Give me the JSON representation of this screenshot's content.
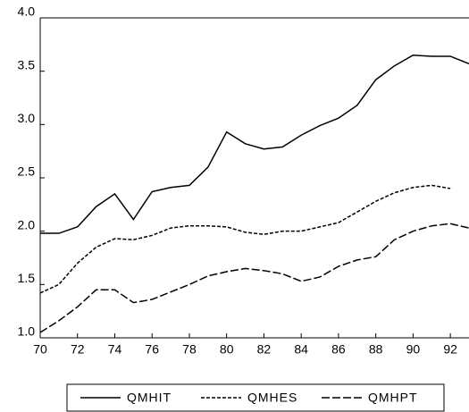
{
  "chart_data": {
    "type": "line",
    "x": [
      1970,
      1971,
      1972,
      1973,
      1974,
      1975,
      1976,
      1977,
      1978,
      1979,
      1980,
      1981,
      1982,
      1983,
      1984,
      1985,
      1986,
      1987,
      1988,
      1989,
      1990,
      1991,
      1992,
      1993
    ],
    "series": [
      {
        "name": "QMHIT",
        "color": "#000000",
        "dash": "solid",
        "values": [
          1.98,
          1.98,
          2.04,
          2.23,
          2.35,
          2.11,
          2.37,
          2.41,
          2.43,
          2.6,
          2.93,
          2.82,
          2.77,
          2.79,
          2.9,
          2.99,
          3.06,
          3.18,
          3.42,
          3.55,
          3.65,
          3.64,
          3.64,
          3.57
        ]
      },
      {
        "name": "QMHES",
        "color": "#000000",
        "dash": "short",
        "values": [
          1.42,
          1.5,
          1.7,
          1.85,
          1.93,
          1.92,
          1.96,
          2.03,
          2.05,
          2.05,
          2.04,
          1.99,
          1.97,
          2.0,
          2.0,
          2.04,
          2.08,
          2.18,
          2.28,
          2.36,
          2.41,
          2.43,
          2.4,
          null
        ]
      },
      {
        "name": "QMHPT",
        "color": "#000000",
        "dash": "long",
        "values": [
          1.05,
          1.16,
          1.29,
          1.45,
          1.45,
          1.33,
          1.36,
          1.43,
          1.5,
          1.58,
          1.62,
          1.65,
          1.63,
          1.6,
          1.53,
          1.57,
          1.67,
          1.73,
          1.76,
          1.92,
          2.0,
          2.05,
          2.07,
          2.03
        ]
      }
    ],
    "xlim": [
      1970,
      1993
    ],
    "xticks": [
      {
        "value": 1970,
        "label": "70"
      },
      {
        "value": 1972,
        "label": "72"
      },
      {
        "value": 1974,
        "label": "74"
      },
      {
        "value": 1976,
        "label": "76"
      },
      {
        "value": 1978,
        "label": "78"
      },
      {
        "value": 1980,
        "label": "80"
      },
      {
        "value": 1982,
        "label": "82"
      },
      {
        "value": 1984,
        "label": "84"
      },
      {
        "value": 1986,
        "label": "86"
      },
      {
        "value": 1988,
        "label": "88"
      },
      {
        "value": 1990,
        "label": "90"
      },
      {
        "value": 1992,
        "label": "92"
      }
    ],
    "ylim": [
      1.0,
      4.0
    ],
    "yticks": [
      {
        "value": 1.0,
        "label": "1.0"
      },
      {
        "value": 1.5,
        "label": "1.5"
      },
      {
        "value": 2.0,
        "label": "2.0"
      },
      {
        "value": 2.5,
        "label": "2.5"
      },
      {
        "value": 3.0,
        "label": "3.0"
      },
      {
        "value": 3.5,
        "label": "3.5"
      },
      {
        "value": 4.0,
        "label": "4.0"
      }
    ],
    "legend": "bottom"
  }
}
